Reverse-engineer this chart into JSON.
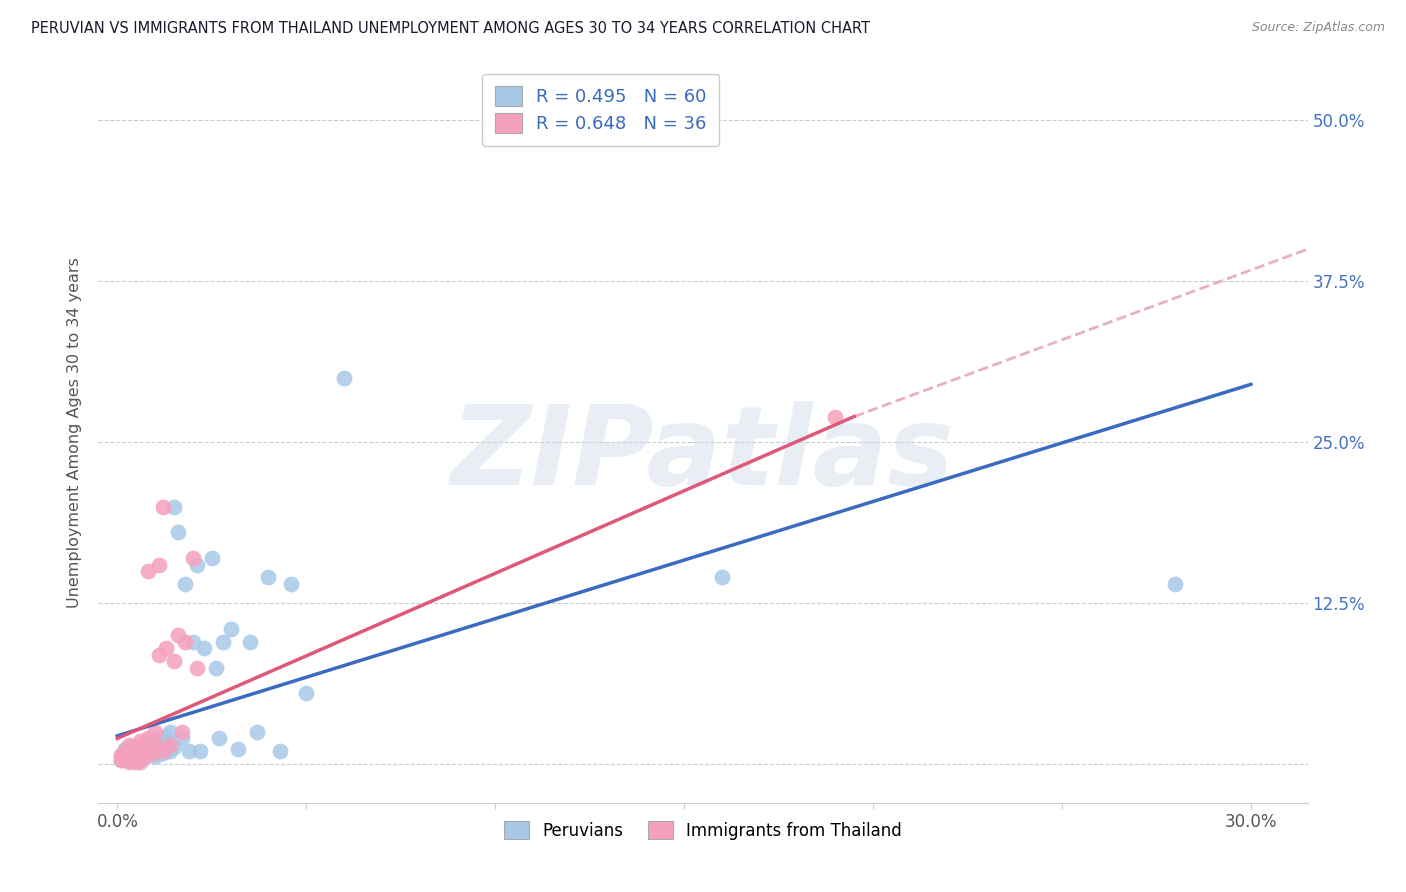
{
  "title": "PERUVIAN VS IMMIGRANTS FROM THAILAND UNEMPLOYMENT AMONG AGES 30 TO 34 YEARS CORRELATION CHART",
  "source": "Source: ZipAtlas.com",
  "xlim": [
    -0.005,
    0.315
  ],
  "ylim": [
    -0.03,
    0.545
  ],
  "ylabel": "Unemployment Among Ages 30 to 34 years",
  "blue_color": "#a8c8e8",
  "blue_line_color": "#3a6bbf",
  "pink_color": "#f5a0bc",
  "pink_line_color": "#e05878",
  "dashed_color": "#e8b0c0",
  "R_blue": 0.495,
  "N_blue": 60,
  "R_pink": 0.648,
  "N_pink": 36,
  "legend_label_blue": "Peruvians",
  "legend_label_pink": "Immigrants from Thailand",
  "watermark": "ZIPatlas",
  "grid_color": "#cccccc",
  "bg_color": "#ffffff",
  "title_color": "#1a1a2e",
  "right_tick_color": "#4472c4",
  "blue_line_x": [
    0.0,
    0.3
  ],
  "blue_line_y": [
    0.022,
    0.295
  ],
  "pink_line_x": [
    0.0,
    0.195
  ],
  "pink_line_y": [
    0.02,
    0.27
  ],
  "dash_line_x": [
    0.195,
    0.315
  ],
  "dash_line_y": [
    0.27,
    0.4
  ],
  "blue_scatter_x": [
    0.001,
    0.001,
    0.002,
    0.002,
    0.002,
    0.003,
    0.003,
    0.003,
    0.004,
    0.004,
    0.004,
    0.005,
    0.005,
    0.005,
    0.006,
    0.006,
    0.006,
    0.007,
    0.007,
    0.008,
    0.008,
    0.008,
    0.009,
    0.009,
    0.01,
    0.01,
    0.01,
    0.011,
    0.011,
    0.012,
    0.012,
    0.013,
    0.013,
    0.014,
    0.014,
    0.015,
    0.015,
    0.016,
    0.017,
    0.018,
    0.019,
    0.02,
    0.021,
    0.022,
    0.023,
    0.025,
    0.026,
    0.027,
    0.028,
    0.03,
    0.032,
    0.035,
    0.037,
    0.04,
    0.043,
    0.046,
    0.05,
    0.06,
    0.16,
    0.28
  ],
  "blue_scatter_y": [
    0.003,
    0.006,
    0.004,
    0.008,
    0.012,
    0.003,
    0.007,
    0.011,
    0.005,
    0.009,
    0.014,
    0.004,
    0.008,
    0.013,
    0.006,
    0.01,
    0.016,
    0.005,
    0.012,
    0.007,
    0.011,
    0.018,
    0.009,
    0.015,
    0.006,
    0.01,
    0.02,
    0.008,
    0.016,
    0.009,
    0.019,
    0.012,
    0.022,
    0.01,
    0.025,
    0.2,
    0.013,
    0.18,
    0.02,
    0.14,
    0.01,
    0.095,
    0.155,
    0.01,
    0.09,
    0.16,
    0.075,
    0.02,
    0.095,
    0.105,
    0.012,
    0.095,
    0.025,
    0.145,
    0.01,
    0.14,
    0.055,
    0.3,
    0.145,
    0.14
  ],
  "pink_scatter_x": [
    0.001,
    0.001,
    0.002,
    0.002,
    0.003,
    0.003,
    0.004,
    0.004,
    0.005,
    0.005,
    0.006,
    0.006,
    0.007,
    0.007,
    0.008,
    0.008,
    0.009,
    0.01,
    0.01,
    0.011,
    0.011,
    0.012,
    0.013,
    0.014,
    0.015,
    0.016,
    0.017,
    0.018,
    0.02,
    0.021,
    0.003,
    0.005,
    0.006,
    0.008,
    0.19,
    0.012
  ],
  "pink_scatter_y": [
    0.003,
    0.007,
    0.005,
    0.01,
    0.008,
    0.015,
    0.006,
    0.012,
    0.004,
    0.013,
    0.009,
    0.018,
    0.007,
    0.014,
    0.011,
    0.02,
    0.008,
    0.016,
    0.025,
    0.085,
    0.155,
    0.01,
    0.09,
    0.015,
    0.08,
    0.1,
    0.025,
    0.095,
    0.16,
    0.075,
    0.002,
    0.002,
    0.002,
    0.15,
    0.27,
    0.2
  ]
}
